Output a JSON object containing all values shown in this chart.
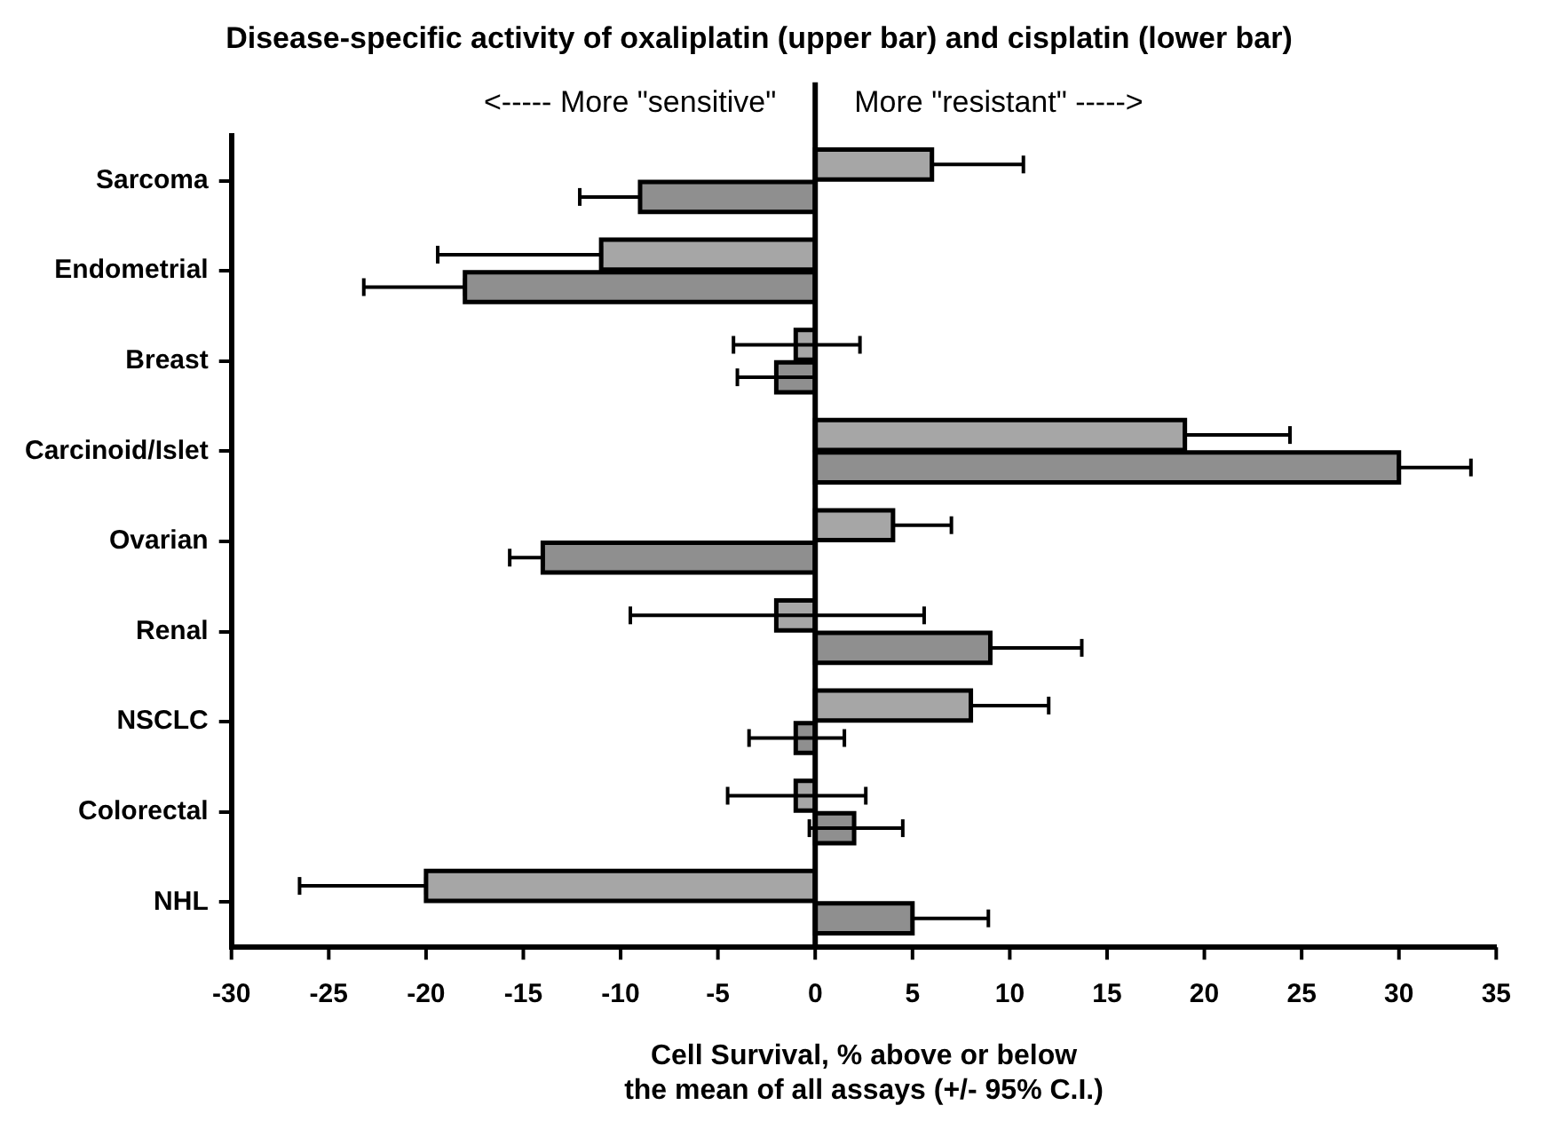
{
  "chart_data": {
    "type": "bar",
    "orientation": "horizontal",
    "title": "Disease-specific activity of oxaliplatin (upper bar) and cisplatin (lower bar)",
    "xlabel": "Cell Survival, % above or below\nthe mean of all assays (+/- 95% C.I.)",
    "annotations": [
      "<----- More \"sensitive\"",
      "More \"resistant\" ----->"
    ],
    "categories": [
      "Sarcoma",
      "Endometrial",
      "Breast",
      "Carcinoid/Islet",
      "Ovarian",
      "Renal",
      "NSCLC",
      "Colorectal",
      "NHL"
    ],
    "series": [
      {
        "color": "#a6a6a6",
        "values": [
          6,
          -11,
          -1,
          19,
          4,
          -2,
          8,
          -1,
          -20
        ],
        "errors": [
          [
            6,
            10.7
          ],
          [
            -19.4,
            -11
          ],
          [
            -4.2,
            2.3
          ],
          [
            19,
            24.4
          ],
          [
            4,
            7
          ],
          [
            -9.5,
            5.6
          ],
          [
            8,
            12
          ],
          [
            -4.5,
            2.6
          ],
          [
            -26.5,
            -20
          ]
        ]
      },
      {
        "color": "#8f8f8f",
        "values": [
          -9,
          -18,
          -2,
          30,
          -14,
          9,
          -1,
          2,
          5
        ],
        "errors": [
          [
            -12.1,
            -9
          ],
          [
            -23.2,
            -18
          ],
          [
            -4,
            0
          ],
          [
            30,
            33.7
          ],
          [
            -15.7,
            -14
          ],
          [
            9,
            13.7
          ],
          [
            -3.4,
            1.5
          ],
          [
            -0.3,
            4.5
          ],
          [
            5,
            8.9
          ]
        ]
      }
    ],
    "xlim": [
      -30,
      35
    ],
    "xticks": [
      -30,
      -25,
      -20,
      -15,
      -10,
      -5,
      0,
      5,
      10,
      15,
      20,
      25,
      30,
      35
    ],
    "ref_lines": [
      {
        "axis": "x",
        "value": 0
      }
    ],
    "grid": false,
    "legend": false
  }
}
